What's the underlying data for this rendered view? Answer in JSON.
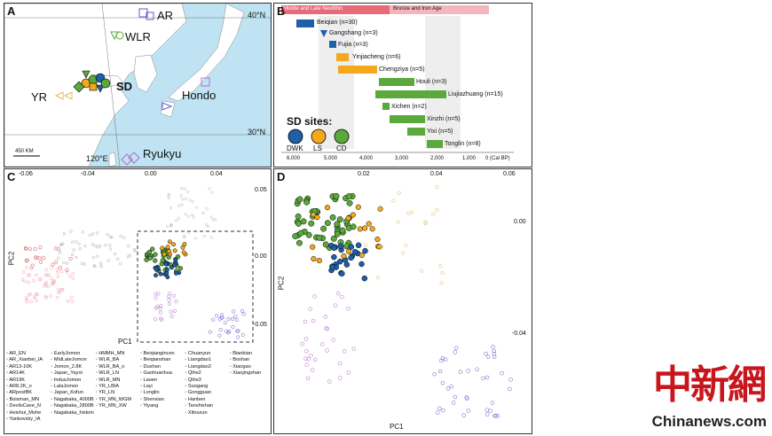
{
  "panelA": {
    "label": "A",
    "sites": [
      "AR",
      "WLR",
      "SD",
      "YR",
      "Hondo",
      "Ryukyu"
    ],
    "lat40": "40°N",
    "lat30": "30°N",
    "lon120": "120°E",
    "scale": "450 KM"
  },
  "panelB": {
    "label": "B",
    "period1": "Middle and Late Neolithic",
    "period2": "Bronze and Iron Age",
    "sites": [
      "Beiqian (n=30)",
      "Gangshang (n=3)",
      "Fujia (n=3)",
      "Yinjiacheng (n=6)",
      "Chengziya (n=5)",
      "Houli (n=3)",
      "Liujiazhuang (n=15)",
      "Xichen (n=2)",
      "Xinzhi (n=5)",
      "Yixi (n=5)",
      "Tonglin (n=8)"
    ],
    "sd_title": "SD sites:",
    "sd_groups": [
      "DWK",
      "LS",
      "CD"
    ],
    "axis": [
      "6,000",
      "5,000",
      "4,000",
      "3,000",
      "2,000",
      "1,000",
      "0 (Cal BP)"
    ]
  },
  "panelC": {
    "label": "C",
    "xticks": [
      "-0.06",
      "-0.04",
      "0.00",
      "0.04"
    ],
    "yticks": [
      "0.05",
      "0.00",
      "-0.05"
    ],
    "xlabel": "PC1",
    "ylabel": "PC2"
  },
  "panelD": {
    "label": "D",
    "xticks": [
      "0.02",
      "0.04",
      "0.06"
    ],
    "yticks": [
      "0.00",
      "-0.04"
    ],
    "xlabel": "PC1",
    "ylabel": "PC2"
  },
  "legend": [
    "AR_EN",
    "EarlyJomon",
    "HMMH_MN",
    "Beiqiangincen",
    "Chuanyun",
    "Bianbian",
    "AR_Xianbei_IA",
    "MidLateJomon",
    "WLR_BA",
    "Beiqianshan",
    "Liangdao1",
    "Boshan",
    "AR13-10K",
    "Jomon_2.8K",
    "WLR_BA_o",
    "Dushan",
    "Liangdao2",
    "Xiaogao",
    "AR14K",
    "Japan_Yayoi",
    "WLR_LN",
    "Gaohuanhua",
    "Qihe2",
    "Xiaojingshan",
    "AR19K",
    "IndusJomon",
    "WLR_MN",
    "Laoen",
    "Qihe3",
    "",
    "AR8.2K_o",
    "LalaJomon",
    "YR_LBIA",
    "Layi",
    "Suogang",
    "",
    "ARpostBK",
    "Japan_Kofun",
    "YR_LN",
    "Longlin",
    "Gongguan",
    "",
    "Boisman_MN",
    "Nagabaka_4000BP",
    "YR_MN_WGM",
    "Shenxian",
    "Hanben",
    "",
    "DevilsCave_N",
    "Nagabaka_2800BP",
    "YR_MN_XW",
    "Yiyang",
    "Tanshishan",
    "",
    "Heishui_Mohe",
    "Nagabaka_historic",
    "",
    "",
    "Xitouzun",
    "",
    "Yankovsky_IA",
    "",
    "",
    "",
    "",
    ""
  ],
  "watermark": {
    "cn": "中新網",
    "en": "Chinanews.com"
  },
  "colors": {
    "dwk": "#1f5fa8",
    "ls": "#f5a81c",
    "cd": "#5aa93a",
    "water": "#bfe3f3",
    "timeline": "#e86b79"
  }
}
